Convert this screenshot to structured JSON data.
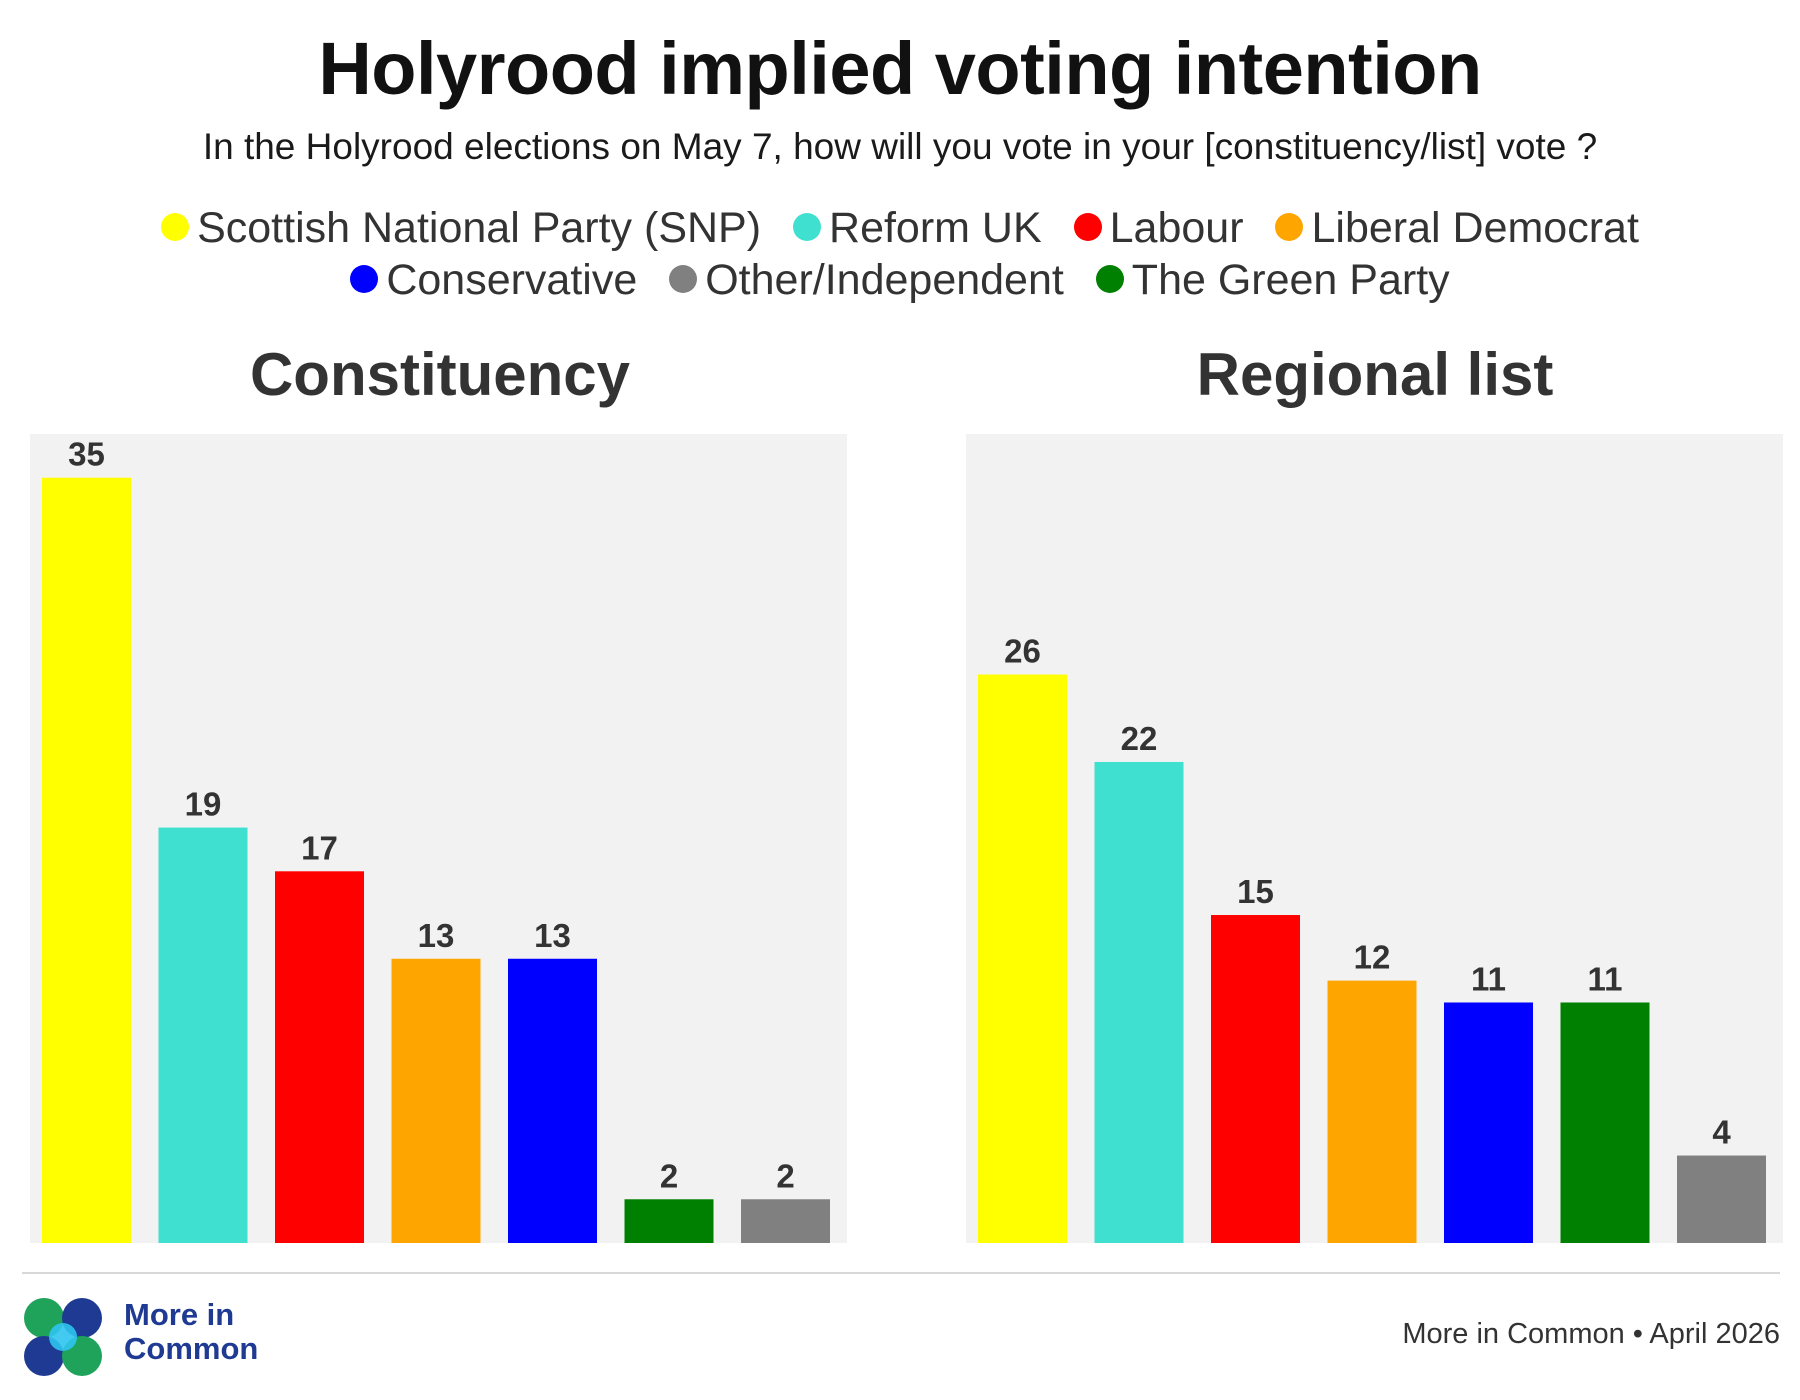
{
  "title": "Holyrood implied voting intention",
  "subtitle": "In the Holyrood elections on May 7, how will you vote in your [constituency/list] vote ?",
  "legend": [
    {
      "label": "Scottish National Party (SNP)",
      "color": "#ffff00"
    },
    {
      "label": "Reform UK",
      "color": "#40e0d0"
    },
    {
      "label": "Labour",
      "color": "#ff0000"
    },
    {
      "label": "Liberal Democrat",
      "color": "#ffa500"
    },
    {
      "label": "Conservative",
      "color": "#0000ff"
    },
    {
      "label": "Other/Independent",
      "color": "#808080"
    },
    {
      "label": "The Green Party",
      "color": "#008000"
    }
  ],
  "chart_data": [
    {
      "type": "bar",
      "title": "Constituency",
      "categories": [
        "Scottish National Party (SNP)",
        "Reform UK",
        "Labour",
        "Liberal Democrat",
        "Conservative",
        "The Green Party",
        "Other/Independent"
      ],
      "values": [
        35,
        19,
        17,
        13,
        13,
        2,
        2
      ],
      "colors": [
        "#ffff00",
        "#40e0d0",
        "#ff0000",
        "#ffa500",
        "#0000ff",
        "#008000",
        "#808080"
      ],
      "ylim": [
        0,
        37
      ],
      "grid": false,
      "data_labels": true
    },
    {
      "type": "bar",
      "title": "Regional list",
      "categories": [
        "Scottish National Party (SNP)",
        "Reform UK",
        "Labour",
        "Liberal Democrat",
        "Conservative",
        "The Green Party",
        "Other/Independent"
      ],
      "values": [
        26,
        22,
        15,
        12,
        11,
        11,
        4
      ],
      "colors": [
        "#ffff00",
        "#40e0d0",
        "#ff0000",
        "#ffa500",
        "#0000ff",
        "#008000",
        "#808080"
      ],
      "ylim": [
        0,
        37
      ],
      "grid": false,
      "data_labels": true
    }
  ],
  "branding": {
    "logo_text": "More in Common",
    "logo_colors": [
      "#1fa35b",
      "#2ec4ee",
      "#1f3a93"
    ]
  },
  "source": "More in Common • April 2026"
}
